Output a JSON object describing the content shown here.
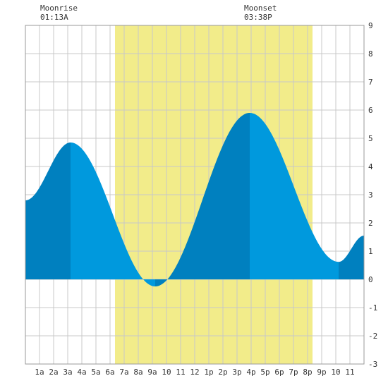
{
  "moonrise": {
    "label": "Moonrise",
    "time": "01:13A"
  },
  "moonset": {
    "label": "Moonset",
    "time": "03:38P"
  },
  "colors": {
    "daylight": "#f2ec8a",
    "tide_dark": "#0080bf",
    "tide_light": "#0099dd",
    "grid": "#c8c8c8",
    "frame": "#999999"
  },
  "chart_data": {
    "type": "area",
    "title": "",
    "xlabel": "",
    "ylabel": "",
    "x_range_hours": [
      0,
      24
    ],
    "ylim": [
      -3,
      9
    ],
    "y_ticks": [
      -3,
      -2,
      -1,
      0,
      1,
      2,
      3,
      4,
      5,
      6,
      7,
      8,
      9
    ],
    "y_axis_side": "right",
    "x_tick_labels": [
      "1a",
      "2a",
      "3a",
      "4a",
      "5a",
      "6a",
      "7a",
      "8a",
      "9a",
      "10",
      "11",
      "12",
      "1p",
      "2p",
      "3p",
      "4p",
      "5p",
      "6p",
      "7p",
      "8p",
      "9p",
      "10",
      "11"
    ],
    "x_tick_hours": [
      1,
      2,
      3,
      4,
      5,
      6,
      7,
      8,
      9,
      10,
      11,
      12,
      13,
      14,
      15,
      16,
      17,
      18,
      19,
      20,
      21,
      22,
      23
    ],
    "grid": true,
    "daylight_hours": [
      6.35,
      20.35
    ],
    "tide_extremes": [
      {
        "hour": 0.0,
        "height": 2.8,
        "type": "start"
      },
      {
        "hour": 3.2,
        "height": 4.85,
        "type": "high"
      },
      {
        "hour": 9.2,
        "height": -0.25,
        "type": "low"
      },
      {
        "hour": 15.9,
        "height": 5.9,
        "type": "high"
      },
      {
        "hour": 22.2,
        "height": 0.62,
        "type": "low"
      },
      {
        "hour": 24.0,
        "height": 1.55,
        "type": "end"
      }
    ]
  }
}
